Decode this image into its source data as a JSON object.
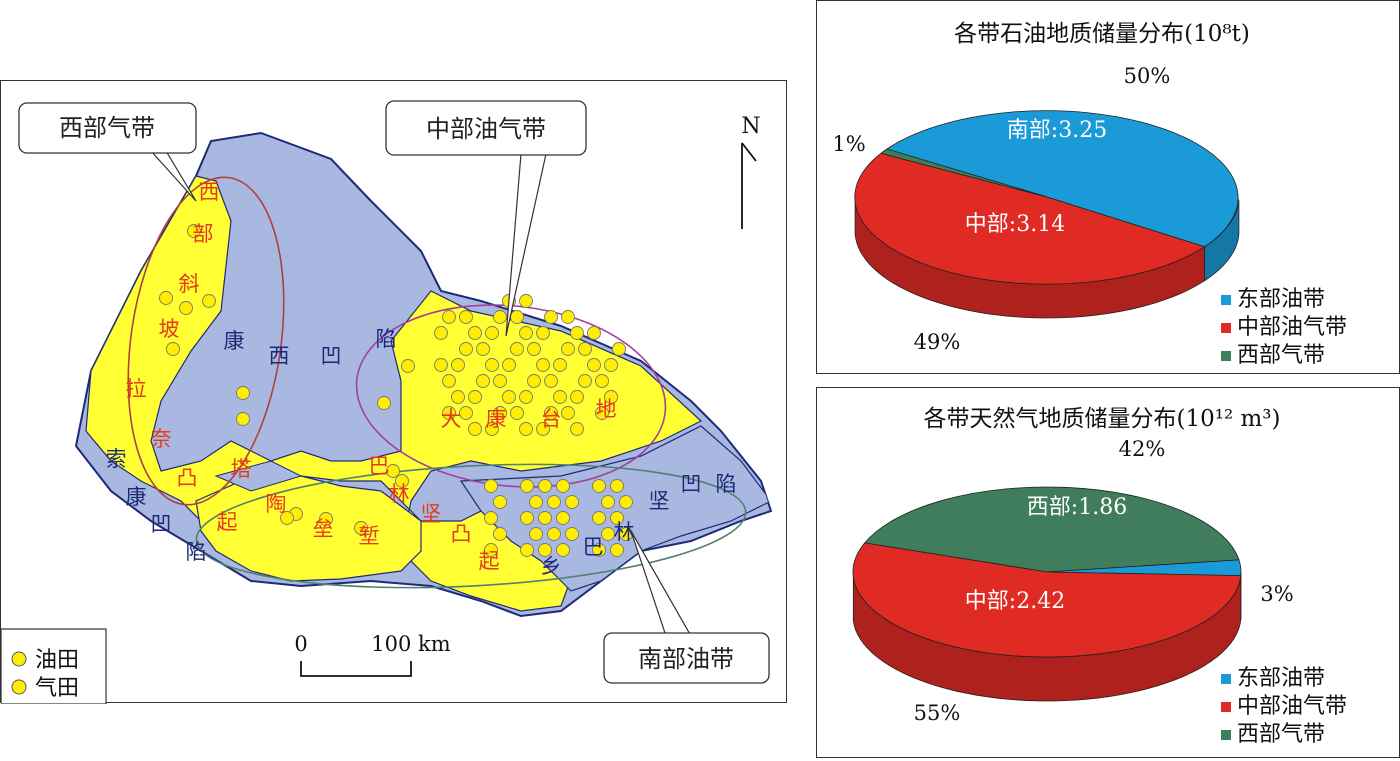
{
  "map": {
    "callouts": {
      "west": "西部气带",
      "central": "中部油气带",
      "south": "南部油带"
    },
    "north_label": "N",
    "scale": {
      "zero": "0",
      "distance": "100 km"
    },
    "legend": [
      {
        "label": "油田"
      },
      {
        "label": "气田"
      }
    ],
    "colors": {
      "depression": "#a9b8e0",
      "uplift": "#ffff33",
      "field": "#ffee00",
      "label": "#e83a1a",
      "dep_label": "#1e2a78",
      "ellipse_west": "#b04040",
      "ellipse_central": "#a0409c",
      "ellipse_south": "#508070"
    },
    "region_labels": {
      "west_slope": [
        "西",
        "部",
        "斜",
        "坡"
      ],
      "lainai": [
        "拉",
        "奈"
      ],
      "kangxi": [
        "康",
        "西",
        "凹",
        "陷"
      ],
      "suokang": [
        "索",
        "康",
        "凹",
        "陷"
      ],
      "taotao": [
        "塔",
        "陶",
        "垒",
        "堑"
      ],
      "baliang": [
        "巴",
        "林",
        "坚",
        "凸",
        "起"
      ],
      "yizhou": [
        "乡",
        "巴",
        "林"
      ],
      "tai": [
        "大",
        "康",
        "台",
        "地"
      ],
      "aoxian_se": [
        "坚",
        "凹",
        "陷"
      ],
      "tu": [
        "凸"
      ],
      "qi": [
        "起"
      ]
    }
  },
  "chart_data": [
    {
      "type": "pie",
      "title": "各带石油地质储量分布(10⁸t)",
      "slices": [
        {
          "name": "东部油带",
          "label": "南部:3.25",
          "value": 3.25,
          "percent": "50%",
          "color": "#1a9ad6"
        },
        {
          "name": "中部油气带",
          "label": "中部:3.14",
          "value": 3.14,
          "percent": "49%",
          "color": "#e02a24"
        },
        {
          "name": "西部气带",
          "label": "",
          "value": 0.06,
          "percent": "1%",
          "color": "#3f7d5c"
        }
      ],
      "legend": [
        "东部油带",
        "中部油气带",
        "西部气带"
      ]
    },
    {
      "type": "pie",
      "title": "各带天然气地质储量分布(10¹² m³)",
      "slices": [
        {
          "name": "西部气带",
          "label": "西部:1.86",
          "value": 1.86,
          "percent": "42%",
          "color": "#3f7d5c"
        },
        {
          "name": "东部油带",
          "label": "",
          "value": 0.13,
          "percent": "3%",
          "color": "#1a9ad6"
        },
        {
          "name": "中部油气带",
          "label": "中部:2.42",
          "value": 2.42,
          "percent": "55%",
          "color": "#e02a24"
        }
      ],
      "legend": [
        "东部油带",
        "中部油气带",
        "西部气带"
      ]
    }
  ]
}
